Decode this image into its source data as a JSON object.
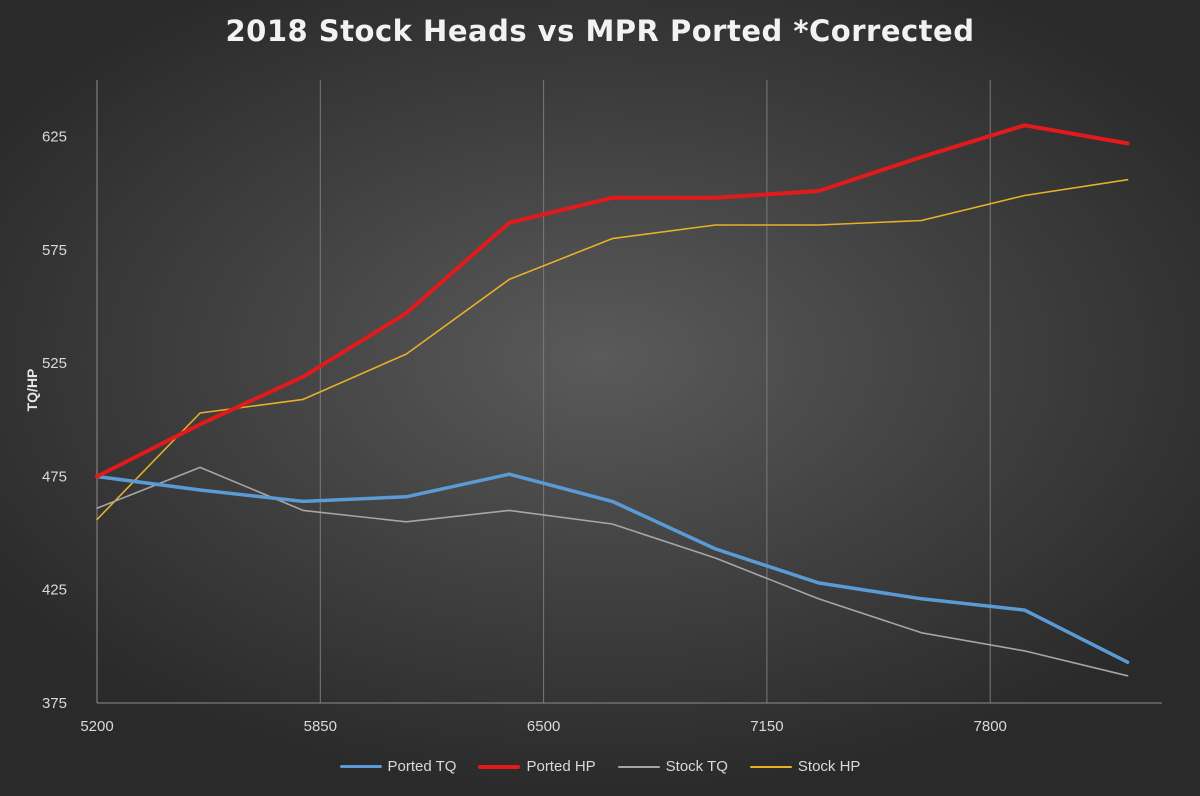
{
  "chart_data": {
    "type": "line",
    "title": "2018 Stock Heads vs MPR Ported *Corrected",
    "xlabel": "",
    "ylabel": "TQ/HP",
    "xlim": [
      5200,
      8300
    ],
    "ylim": [
      375,
      650
    ],
    "x_ticks": [
      5200,
      5850,
      6500,
      7150,
      7800
    ],
    "y_ticks": [
      375,
      425,
      475,
      525,
      575,
      625
    ],
    "series": [
      {
        "name": "Ported TQ",
        "color": "#5b9bd5",
        "width": 3.5,
        "x": [
          5200,
          5500,
          5800,
          6100,
          6400,
          6700,
          7000,
          7300,
          7600,
          7900,
          8200
        ],
        "values": [
          475,
          469,
          464,
          466,
          476,
          464,
          443,
          428,
          421,
          416,
          393
        ]
      },
      {
        "name": "Ported HP",
        "color": "#e31a1c",
        "width": 4,
        "x": [
          5200,
          5500,
          5800,
          6100,
          6400,
          6700,
          7000,
          7300,
          7600,
          7900,
          8200
        ],
        "values": [
          475,
          498,
          519,
          547,
          587,
          598,
          598,
          601,
          616,
          630,
          622
        ]
      },
      {
        "name": "Stock TQ",
        "color": "#a6a6a6",
        "width": 1.6,
        "x": [
          5200,
          5500,
          5800,
          6100,
          6400,
          6700,
          7000,
          7300,
          7600,
          7900,
          8200
        ],
        "values": [
          461,
          479,
          460,
          455,
          460,
          454,
          439,
          421,
          406,
          398,
          387
        ]
      },
      {
        "name": "Stock HP",
        "color": "#e8b029",
        "width": 1.6,
        "x": [
          5200,
          5500,
          5800,
          6100,
          6400,
          6700,
          7000,
          7300,
          7600,
          7900,
          8200
        ],
        "values": [
          456,
          503,
          509,
          529,
          562,
          580,
          586,
          586,
          588,
          599,
          606
        ]
      }
    ]
  }
}
